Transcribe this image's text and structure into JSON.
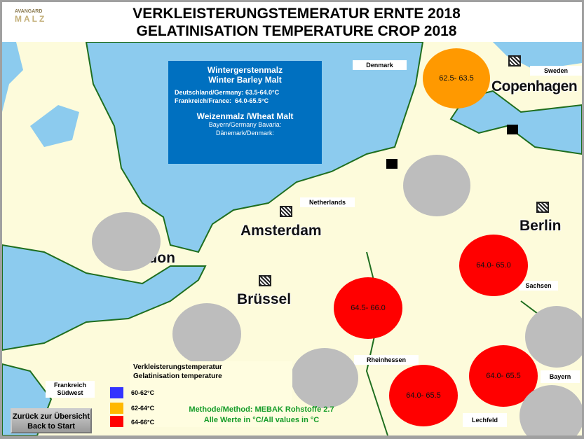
{
  "header": {
    "logo_top": "AVANGARD",
    "logo_bottom": "MALZ",
    "title_de": "VERKLEISTERUNGSTEMERATUR ERNTE 2018",
    "title_en": "GELATINISATION TEMPERATURE CROP 2018"
  },
  "info": {
    "barley_de": "Wintergerstenmalz",
    "barley_en": "Winter Barley Malt",
    "germany": "Deutschland/Germany: 63.5-64.0°C",
    "france": "Frankreich/France:  64.0-65.5°C",
    "wheat": "Weizenmalz /Wheat Malt",
    "bavaria": "Bayern/Germany Bavaria:",
    "denmark": "Dänemark/Denmark:"
  },
  "regions": {
    "denmark": "Denmark",
    "sweden": "Sweden",
    "netherlands": "Netherlands",
    "sachsen": "Sachsen",
    "rheinhessen": "Rheinhessen",
    "lechfeld": "Lechfeld",
    "bayern": "Bayern",
    "frankreich_sw": "Frankreich Südwest"
  },
  "cities": {
    "amsterdam": "Amsterdam",
    "berlin": "Berlin",
    "bruessel": "Brüssel",
    "copenhagen": "Copenhagen",
    "london": "London"
  },
  "markers": [
    {
      "id": "denmark",
      "value": "62.5- 63.5",
      "color": "#ff9900"
    },
    {
      "id": "sachsen",
      "value": "64.0- 65.0",
      "color": "#ff0000"
    },
    {
      "id": "west-germany",
      "value": "64.5- 66.0",
      "color": "#ff0000"
    },
    {
      "id": "rheinhessen",
      "value": "64.0- 65.5",
      "color": "#ff0000"
    },
    {
      "id": "bayern",
      "value": "64.0- 65.5",
      "color": "#ff0000"
    }
  ],
  "no_data_color": "#bdbdbd",
  "legend": {
    "title_de": "Verkleisterungstemperatur",
    "title_en": "Gelatinisation temperature",
    "items": [
      {
        "label": "60-62°C",
        "color": "#3333ff"
      },
      {
        "label": "62-64°C",
        "color": "#ffb800"
      },
      {
        "label": "64-66°C",
        "color": "#ff0000"
      }
    ]
  },
  "method": {
    "line1": "Methode/Method: MEBAK Rohstoffe 2.7",
    "line2": "Alle Werte in °C/All values in °C"
  },
  "back_button": {
    "line1": "Zurück zur Übersicht",
    "line2": "Back to Start"
  }
}
